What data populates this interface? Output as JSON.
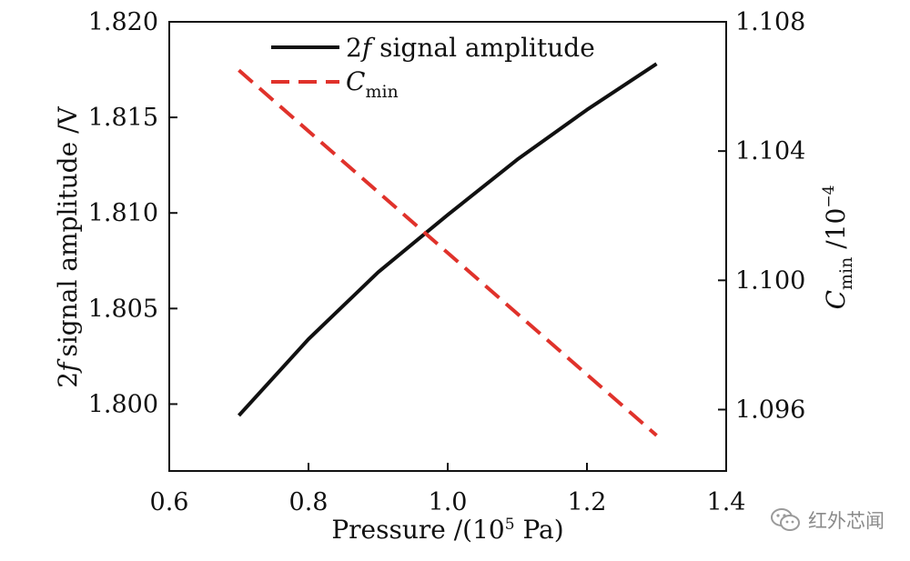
{
  "chart_data": {
    "type": "line",
    "x": [
      0.7,
      0.8,
      0.9,
      1.0,
      1.1,
      1.2,
      1.3
    ],
    "xlabel": "Pressure /(10",
    "xlabel_sup": "5",
    "xlabel_tail": " Pa)",
    "xlim": [
      0.6,
      1.4
    ],
    "x_ticks": [
      "0.6",
      "0.8",
      "1.0",
      "1.2",
      "1.4"
    ],
    "x_tick_values": [
      0.6,
      0.8,
      1.0,
      1.2,
      1.4
    ],
    "ylabel_left": "signal amplitude /V",
    "ylabel_left_prefix": "2",
    "ylabel_left_italic": "f",
    "ylim_left": [
      1.7965,
      1.82
    ],
    "y_ticks_left": [
      "1.800",
      "1.805",
      "1.810",
      "1.815",
      "1.820"
    ],
    "y_tick_values_left": [
      1.8,
      1.805,
      1.81,
      1.815,
      1.82
    ],
    "ylabel_right_main": "C",
    "ylabel_right_sub": "min",
    "ylabel_right_tail": " /10",
    "ylabel_right_sup": "−4",
    "ylim_right": [
      1.0941,
      1.108
    ],
    "y_ticks_right": [
      "1.096",
      "1.100",
      "1.104",
      "1.108"
    ],
    "y_tick_values_right": [
      1.096,
      1.1,
      1.104,
      1.108
    ],
    "series": [
      {
        "name": "2f signal amplitude",
        "axis": "left",
        "style": "solid",
        "color": "#111111",
        "x": [
          0.7,
          0.8,
          0.9,
          1.0,
          1.1,
          1.2,
          1.3
        ],
        "values": [
          1.7994,
          1.8034,
          1.8069,
          1.8099,
          1.8128,
          1.8154,
          1.8178
        ]
      },
      {
        "name": "Cmin",
        "axis": "right",
        "style": "dashed",
        "color": "#e0322b",
        "x": [
          0.7,
          1.3
        ],
        "values": [
          1.1065,
          1.0952
        ]
      }
    ],
    "legend": [
      {
        "prefix": "2",
        "italic": "f",
        "rest": " signal amplitude"
      },
      {
        "main": "C",
        "sub": "min"
      }
    ],
    "legend_position": "top-center"
  },
  "watermark": {
    "text": "红外芯闻",
    "icon": "wechat-icon"
  }
}
